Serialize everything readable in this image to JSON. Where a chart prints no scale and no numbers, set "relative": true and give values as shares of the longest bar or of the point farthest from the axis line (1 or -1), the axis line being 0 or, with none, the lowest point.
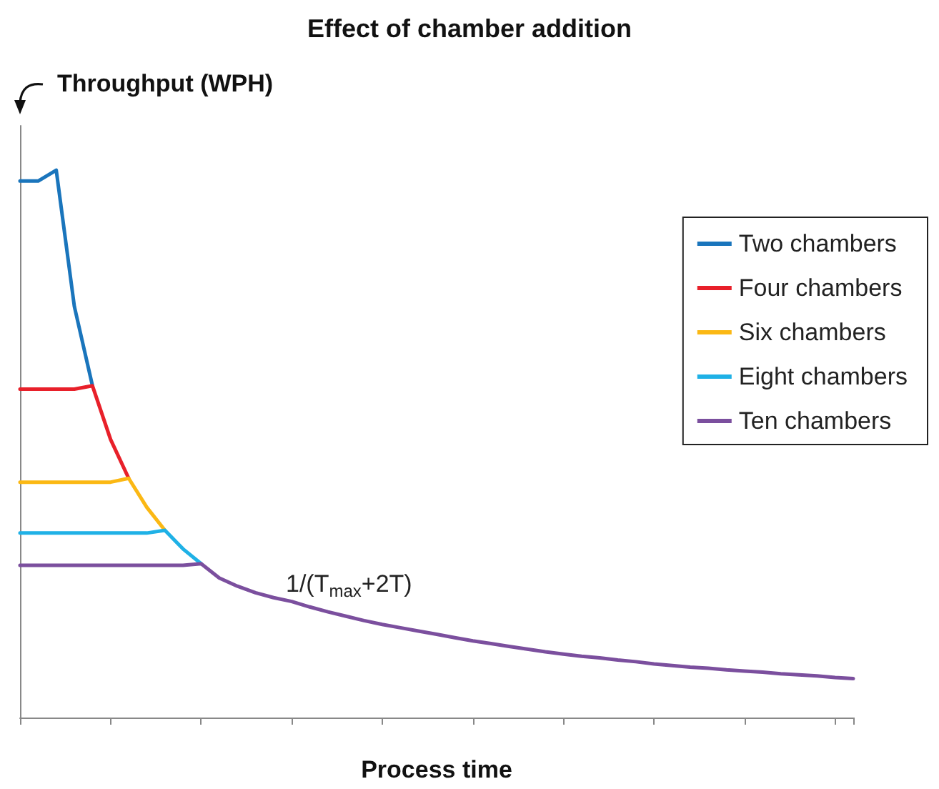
{
  "chart_data": {
    "type": "line",
    "title": "Effect of chamber addition",
    "xlabel": "Process time",
    "ylabel": "Throughput (WPH)",
    "relative": true,
    "grid": false,
    "legend": "right",
    "marker": "none",
    "line_style": "solid",
    "annotations": [
      "1/(T$_{max}$+2T)"
    ],
    "categories": [
      null,
      null,
      null,
      null,
      null,
      null,
      null,
      null,
      null,
      null,
      null,
      null,
      null,
      null,
      null,
      null,
      null,
      null,
      null,
      null,
      null,
      null,
      null,
      null,
      null,
      null,
      null,
      null,
      null,
      null,
      null,
      null,
      null,
      null,
      null,
      null,
      null,
      null,
      null,
      null,
      null,
      null,
      null,
      null,
      null,
      null,
      null
    ],
    "series": [
      {
        "name": "Two chambers",
        "color": "#1a75bc",
        "values": [
          0.98,
          0.98,
          1.0,
          0.751,
          0.606,
          null,
          null,
          null,
          null,
          null,
          null,
          null,
          null,
          null,
          null,
          null,
          null,
          null,
          null,
          null,
          null,
          null,
          null,
          null,
          null,
          null,
          null,
          null,
          null,
          null,
          null,
          null,
          null,
          null,
          null,
          null,
          null,
          null,
          null,
          null,
          null,
          null,
          null,
          null,
          null,
          null,
          null
        ]
      },
      {
        "name": "Four chambers",
        "color": "#e8202a",
        "values": [
          0.6,
          0.6,
          0.6,
          0.6,
          0.606,
          0.508,
          0.437,
          null,
          null,
          null,
          null,
          null,
          null,
          null,
          null,
          null,
          null,
          null,
          null,
          null,
          null,
          null,
          null,
          null,
          null,
          null,
          null,
          null,
          null,
          null,
          null,
          null,
          null,
          null,
          null,
          null,
          null,
          null,
          null,
          null,
          null,
          null,
          null,
          null,
          null,
          null,
          null
        ]
      },
      {
        "name": "Six chambers",
        "color": "#fbb814",
        "values": [
          0.43,
          0.43,
          0.43,
          0.43,
          0.43,
          0.43,
          0.437,
          0.384,
          0.342,
          null,
          null,
          null,
          null,
          null,
          null,
          null,
          null,
          null,
          null,
          null,
          null,
          null,
          null,
          null,
          null,
          null,
          null,
          null,
          null,
          null,
          null,
          null,
          null,
          null,
          null,
          null,
          null,
          null,
          null,
          null,
          null,
          null,
          null,
          null,
          null,
          null,
          null
        ]
      },
      {
        "name": "Eight chambers",
        "color": "#1fb1e6",
        "values": [
          0.337,
          0.337,
          0.337,
          0.337,
          0.337,
          0.337,
          0.337,
          0.337,
          0.342,
          0.308,
          0.281,
          null,
          null,
          null,
          null,
          null,
          null,
          null,
          null,
          null,
          null,
          null,
          null,
          null,
          null,
          null,
          null,
          null,
          null,
          null,
          null,
          null,
          null,
          null,
          null,
          null,
          null,
          null,
          null,
          null,
          null,
          null,
          null,
          null,
          null,
          null,
          null
        ]
      },
      {
        "name": "Ten chambers",
        "color": "#7b4f9e",
        "values": [
          0.278,
          0.278,
          0.278,
          0.278,
          0.278,
          0.278,
          0.278,
          0.278,
          0.278,
          0.278,
          0.281,
          0.255,
          0.24,
          0.228,
          0.219,
          0.212,
          0.202,
          0.193,
          0.185,
          0.177,
          0.17,
          0.164,
          0.158,
          0.152,
          0.146,
          0.14,
          0.135,
          0.13,
          0.125,
          0.12,
          0.116,
          0.112,
          0.109,
          0.105,
          0.102,
          0.098,
          0.095,
          0.092,
          0.09,
          0.087,
          0.085,
          0.083,
          0.08,
          0.078,
          0.076,
          0.073,
          0.071
        ]
      }
    ]
  }
}
